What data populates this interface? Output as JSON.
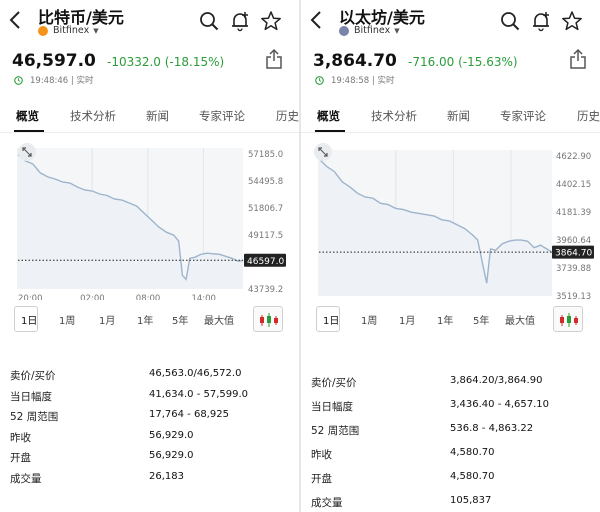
{
  "colors": {
    "up": "#2a9d3a",
    "down": "#2a9d3a",
    "line": "#9eb4cc",
    "area": "#eef2f6",
    "candle_up": "#d12a2a",
    "candle_down": "#2a9d3a"
  },
  "panels": [
    {
      "title": "比特币/美元",
      "exchange": "Bitfinex",
      "coin_icon": "bitcoin-icon",
      "coin_color": "#f7931a",
      "price": "46,597.0",
      "change": "-10332.0 (-18.15%)",
      "time": "19:48:46 | 实时",
      "tabs": [
        "概览",
        "技术分析",
        "新闻",
        "专家评论",
        "历史"
      ],
      "active_tab": 0,
      "ranges": [
        "1日",
        "1周",
        "1月",
        "1年",
        "5年",
        "最大值"
      ],
      "active_range": 0,
      "stats": [
        {
          "label": "卖价/买价",
          "value": "46,563.0/46,572.0"
        },
        {
          "label": "当日幅度",
          "value": "41,634.0 - 57,599.0"
        },
        {
          "label": "52 周范围",
          "value": "17,764 - 68,925"
        },
        {
          "label": "昨收",
          "value": "56,929.0"
        },
        {
          "label": "开盘",
          "value": "56,929.0"
        },
        {
          "label": "成交量",
          "value": "26,183"
        }
      ],
      "chart_data": {
        "type": "area",
        "title": "",
        "x_ticks": [
          "20:00",
          "02:00",
          "08:00",
          "14:00"
        ],
        "y_ticks": [
          "57185.0",
          "54495.8",
          "51806.7",
          "49117.5",
          "43739.2"
        ],
        "ylim": [
          43739.2,
          57185.0
        ],
        "prev_close": 46597.0,
        "last_label": "46597.0",
        "x": [
          0,
          0.6,
          1.2,
          1.8,
          2.4,
          3,
          3.6,
          4.2,
          4.8,
          5.4,
          6,
          6.6,
          7.2,
          7.8,
          8.4,
          9,
          9.6,
          10.2,
          10.8,
          11.4,
          12,
          12.6,
          13,
          13.3,
          13.6,
          13.9,
          14.3,
          14.8,
          15.3,
          15.8,
          16.3,
          16.8,
          17.3,
          17.8,
          18.2
        ],
        "y": [
          57100,
          56500,
          56200,
          55300,
          54900,
          54700,
          54400,
          54300,
          53900,
          53600,
          53500,
          53200,
          53050,
          52700,
          52600,
          52300,
          52000,
          51300,
          50600,
          49900,
          49400,
          49100,
          48500,
          45100,
          44700,
          46800,
          46900,
          47200,
          47300,
          47250,
          47200,
          47000,
          46800,
          46500,
          46597
        ]
      }
    },
    {
      "title": "以太坊/美元",
      "exchange": "Bitfinex",
      "coin_icon": "ethereum-icon",
      "coin_color": "#7a83a8",
      "price": "3,864.70",
      "change": "-716.00 (-15.63%)",
      "time": "19:48:58 | 实时",
      "tabs": [
        "概览",
        "技术分析",
        "新闻",
        "专家评论",
        "历史"
      ],
      "active_tab": 0,
      "ranges": [
        "1日",
        "1周",
        "1月",
        "1年",
        "5年",
        "最大值"
      ],
      "active_range": 0,
      "stats": [
        {
          "label": "卖价/买价",
          "value": "3,864.20/3,864.90"
        },
        {
          "label": "当日幅度",
          "value": "3,436.40 - 4,657.10"
        },
        {
          "label": "52 周范围",
          "value": "536.8 - 4,863.22"
        },
        {
          "label": "昨收",
          "value": "4,580.70"
        },
        {
          "label": "开盘",
          "value": "4,580.70"
        },
        {
          "label": "成交量",
          "value": "105,837"
        }
      ],
      "chart_data": {
        "type": "area",
        "title": "",
        "x_ticks": [
          "20:00",
          "02:00",
          "08:00",
          "14:00"
        ],
        "y_ticks": [
          "4622.90",
          "4402.15",
          "4181.39",
          "3960.64",
          "3739.88",
          "3519.13"
        ],
        "ylim": [
          3519.13,
          4622.9
        ],
        "prev_close": 3864.7,
        "last_label": "3864.70",
        "x": [
          0,
          0.6,
          1.2,
          1.8,
          2.4,
          3,
          3.6,
          4.2,
          4.8,
          5.4,
          6,
          6.6,
          7.2,
          7.8,
          8.4,
          9,
          9.6,
          10.2,
          10.8,
          11.4,
          12,
          12.4,
          12.8,
          13.1,
          13.4,
          13.8,
          14.3,
          14.8,
          15.3,
          15.8,
          16.3,
          16.8,
          17.3,
          17.8,
          18.2
        ],
        "y": [
          4600,
          4540,
          4500,
          4420,
          4380,
          4330,
          4300,
          4290,
          4250,
          4240,
          4210,
          4200,
          4180,
          4170,
          4160,
          4150,
          4120,
          4110,
          4080,
          4050,
          4000,
          3960,
          3760,
          3620,
          3890,
          3880,
          3930,
          3950,
          3960,
          3960,
          3950,
          3900,
          3920,
          3890,
          3864.7
        ]
      }
    }
  ]
}
